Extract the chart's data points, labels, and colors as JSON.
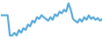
{
  "y": [
    32,
    32,
    32,
    32,
    10,
    10,
    13,
    10,
    16,
    13,
    18,
    16,
    22,
    20,
    26,
    24,
    30,
    28,
    32,
    30,
    28,
    26,
    30,
    27,
    33,
    31,
    36,
    34,
    38,
    36,
    45,
    38,
    28,
    26,
    24,
    28,
    25,
    30,
    27,
    32,
    28,
    30,
    27,
    29,
    26,
    28
  ],
  "line_color": "#4da6d8",
  "background_color": "#ffffff",
  "linewidth": 1.5
}
